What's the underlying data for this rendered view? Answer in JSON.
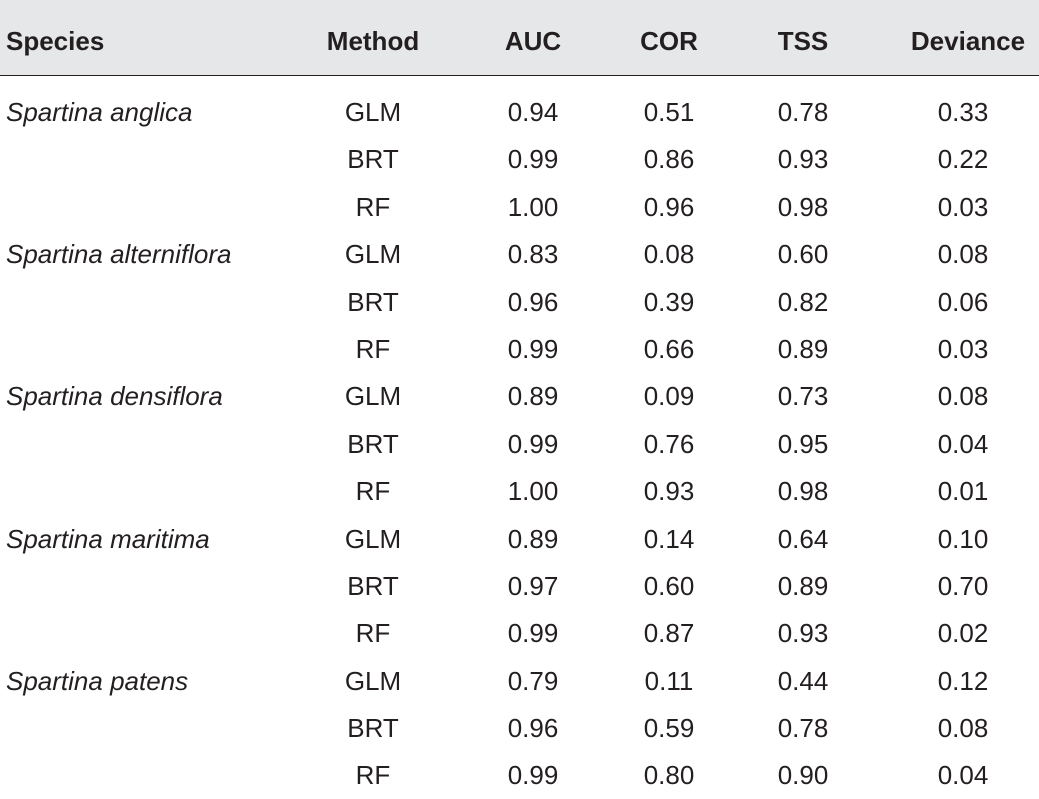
{
  "headers": {
    "species": "Species",
    "method": "Method",
    "auc": "AUC",
    "cor": "COR",
    "tss": "TSS",
    "deviance": "Deviance"
  },
  "rows": [
    {
      "species": "Spartina anglica",
      "method": "GLM",
      "auc": "0.94",
      "cor": "0.51",
      "tss": "0.78",
      "deviance": "0.33"
    },
    {
      "species": "",
      "method": "BRT",
      "auc": "0.99",
      "cor": "0.86",
      "tss": "0.93",
      "deviance": "0.22"
    },
    {
      "species": "",
      "method": "RF",
      "auc": "1.00",
      "cor": "0.96",
      "tss": "0.98",
      "deviance": "0.03"
    },
    {
      "species": "Spartina alterniflora",
      "method": "GLM",
      "auc": "0.83",
      "cor": "0.08",
      "tss": "0.60",
      "deviance": "0.08"
    },
    {
      "species": "",
      "method": "BRT",
      "auc": "0.96",
      "cor": "0.39",
      "tss": "0.82",
      "deviance": "0.06"
    },
    {
      "species": "",
      "method": "RF",
      "auc": "0.99",
      "cor": "0.66",
      "tss": "0.89",
      "deviance": "0.03"
    },
    {
      "species": "Spartina densiflora",
      "method": "GLM",
      "auc": "0.89",
      "cor": "0.09",
      "tss": "0.73",
      "deviance": "0.08"
    },
    {
      "species": "",
      "method": "BRT",
      "auc": "0.99",
      "cor": "0.76",
      "tss": "0.95",
      "deviance": "0.04"
    },
    {
      "species": "",
      "method": "RF",
      "auc": "1.00",
      "cor": "0.93",
      "tss": "0.98",
      "deviance": "0.01"
    },
    {
      "species": "Spartina maritima",
      "method": "GLM",
      "auc": "0.89",
      "cor": "0.14",
      "tss": "0.64",
      "deviance": "0.10"
    },
    {
      "species": "",
      "method": "BRT",
      "auc": "0.97",
      "cor": "0.60",
      "tss": "0.89",
      "deviance": "0.70"
    },
    {
      "species": "",
      "method": "RF",
      "auc": "0.99",
      "cor": "0.87",
      "tss": "0.93",
      "deviance": "0.02"
    },
    {
      "species": "Spartina patens",
      "method": "GLM",
      "auc": "0.79",
      "cor": "0.11",
      "tss": "0.44",
      "deviance": "0.12"
    },
    {
      "species": "",
      "method": "BRT",
      "auc": "0.96",
      "cor": "0.59",
      "tss": "0.78",
      "deviance": "0.08"
    },
    {
      "species": "",
      "method": "RF",
      "auc": "0.99",
      "cor": "0.80",
      "tss": "0.90",
      "deviance": "0.04"
    }
  ],
  "colors": {
    "header_bg": "#e6e7e8",
    "text": "#231f20"
  }
}
